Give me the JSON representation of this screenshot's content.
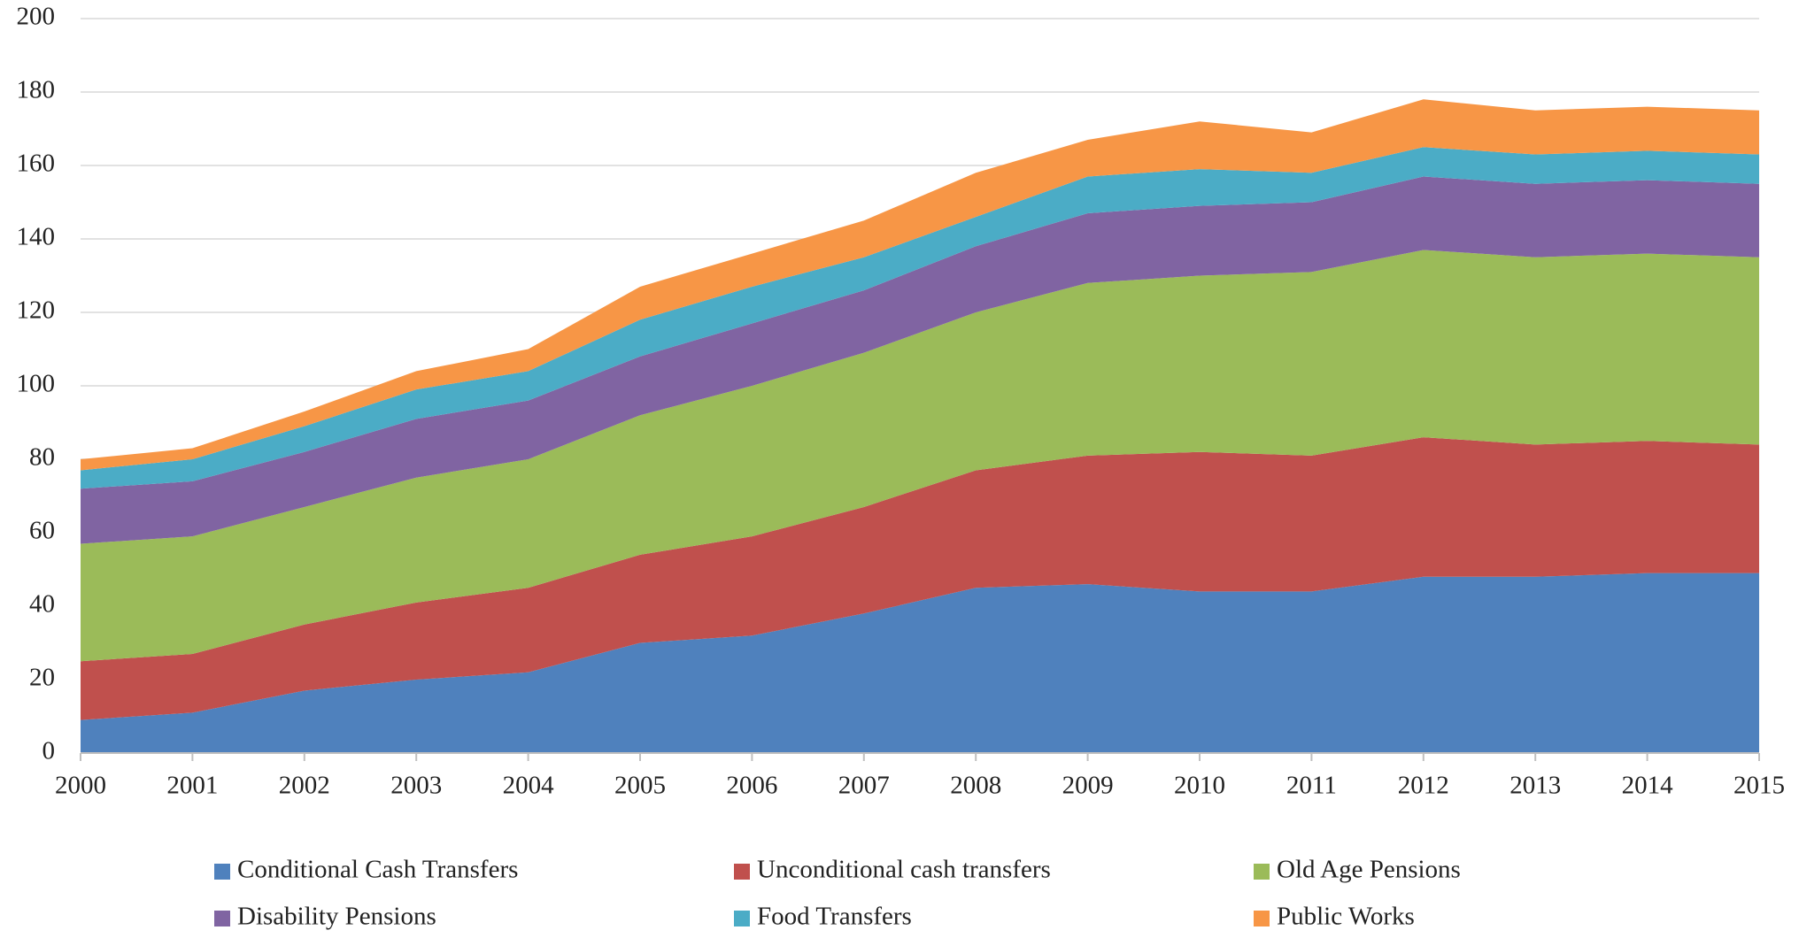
{
  "chart_data": {
    "type": "stacked_area",
    "categories": [
      "2000",
      "2001",
      "2002",
      "2003",
      "2004",
      "2005",
      "2006",
      "2007",
      "2008",
      "2009",
      "2010",
      "2011",
      "2012",
      "2013",
      "2014",
      "2015"
    ],
    "series": [
      {
        "name": "Conditional Cash Transfers",
        "color": "#4f81bd",
        "values": [
          9,
          11,
          17,
          20,
          22,
          30,
          32,
          38,
          45,
          46,
          44,
          44,
          48,
          48,
          49,
          49
        ]
      },
      {
        "name": "Unconditional cash transfers",
        "color": "#c0504d",
        "values": [
          16,
          16,
          18,
          21,
          23,
          24,
          27,
          29,
          32,
          35,
          38,
          37,
          38,
          36,
          36,
          35
        ]
      },
      {
        "name": "Old Age Pensions",
        "color": "#9bbb59",
        "values": [
          32,
          32,
          32,
          34,
          35,
          38,
          41,
          42,
          43,
          47,
          48,
          50,
          51,
          51,
          51,
          51
        ]
      },
      {
        "name": "Disability Pensions",
        "color": "#8064a2",
        "values": [
          15,
          15,
          15,
          16,
          16,
          16,
          17,
          17,
          18,
          19,
          19,
          19,
          20,
          20,
          20,
          20
        ]
      },
      {
        "name": "Food Transfers",
        "color": "#4bacc6",
        "values": [
          5,
          6,
          7,
          8,
          8,
          10,
          10,
          9,
          8,
          10,
          10,
          8,
          8,
          8,
          8,
          8
        ]
      },
      {
        "name": "Public Works",
        "color": "#f79646",
        "values": [
          3,
          3,
          4,
          5,
          6,
          9,
          9,
          10,
          12,
          10,
          13,
          11,
          13,
          12,
          12,
          12
        ]
      }
    ],
    "ylim": [
      0,
      200
    ],
    "yticks": [
      0,
      20,
      40,
      60,
      80,
      100,
      120,
      140,
      160,
      180,
      200
    ],
    "grid": true
  }
}
